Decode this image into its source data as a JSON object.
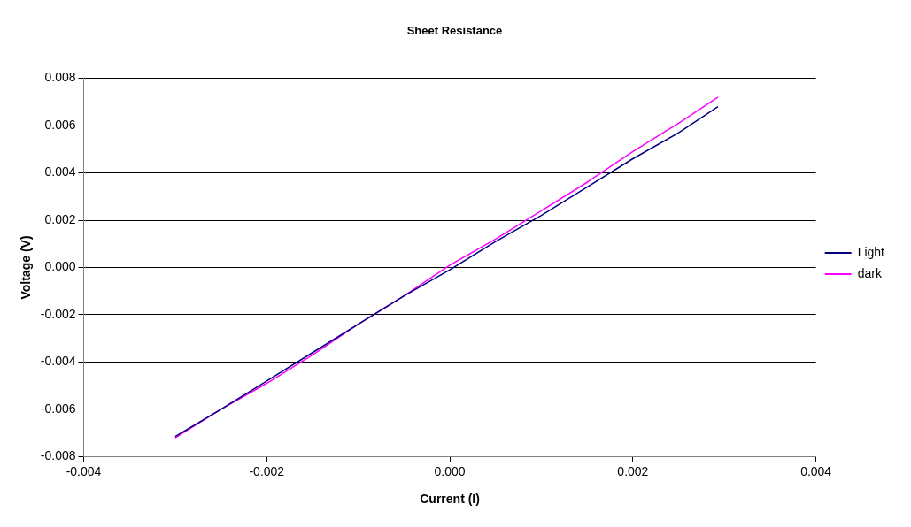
{
  "chart_data": {
    "type": "line",
    "title": "Sheet Resistance",
    "xlabel": "Current (I)",
    "ylabel": "Voltage (V)",
    "xlim": [
      -0.004,
      0.004
    ],
    "xticks": [
      -0.004,
      -0.002,
      {
        "value": 0,
        "label": "0.000"
      },
      0.002,
      0.004
    ],
    "ylim": [
      -0.008,
      0.008
    ],
    "yticks": [
      -0.008,
      -0.006,
      -0.004,
      -0.002,
      {
        "value": 0,
        "label": "0.000"
      },
      0.002,
      0.004,
      0.006,
      0.008
    ],
    "grid": "y",
    "legend": "right",
    "marker": "none",
    "line_style": "solid",
    "series": [
      {
        "name": "Light",
        "color": "#000080",
        "x": [
          -0.003,
          -0.0025,
          -0.002,
          -0.0015,
          -0.001,
          -0.0005,
          0,
          0.0005,
          0.001,
          0.0015,
          0.002,
          0.0025,
          0.00293
        ],
        "values": [
          -0.00715,
          -0.006,
          -0.0048,
          -0.0036,
          -0.0024,
          -0.0012,
          -0.0001,
          0.0011,
          0.0022,
          0.0034,
          0.0046,
          0.0057,
          0.0068
        ]
      },
      {
        "name": "dark",
        "color": "#ff00ff",
        "x": [
          -0.003,
          -0.0025,
          -0.002,
          -0.0015,
          -0.001,
          -0.0005,
          0,
          0.0005,
          0.001,
          0.0015,
          0.002,
          0.0025,
          0.00293
        ],
        "values": [
          -0.0072,
          -0.006,
          -0.0049,
          -0.0037,
          -0.0024,
          -0.0012,
          0.0001,
          0.0012,
          0.0024,
          0.0036,
          0.0049,
          0.0061,
          0.0072
        ]
      }
    ]
  }
}
